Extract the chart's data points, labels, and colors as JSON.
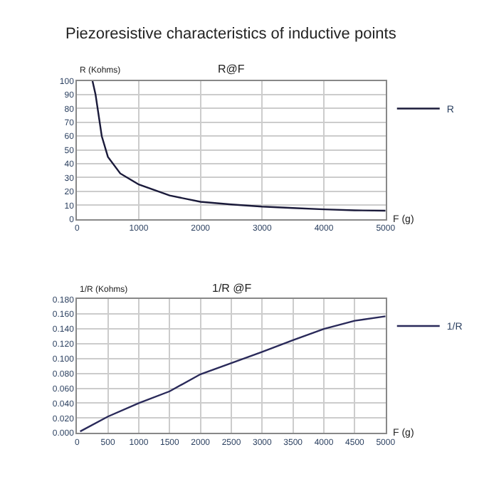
{
  "chart_data": [
    {
      "type": "line",
      "title": "Piezoresistive characteristics of inductive points",
      "subtitle": "R@F",
      "xlabel": "F (g)",
      "ylabel": "R (Kohms)",
      "x": [
        250,
        300,
        400,
        500,
        700,
        1000,
        1500,
        2000,
        2500,
        3000,
        3500,
        4000,
        4500,
        5000
      ],
      "series": [
        {
          "name": "R",
          "color": "#1a1a3a",
          "values": [
            100,
            90,
            60,
            45,
            33,
            25,
            17,
            12.5,
            10.5,
            9,
            8,
            7,
            6.3,
            6
          ]
        }
      ],
      "xlim": [
        0,
        5000
      ],
      "xticks": [
        0,
        1000,
        2000,
        3000,
        4000,
        5000
      ],
      "ylim": [
        0,
        100
      ],
      "yticks": [
        0,
        10,
        20,
        30,
        40,
        50,
        60,
        70,
        80,
        90,
        100
      ],
      "grid": true,
      "legend": "right"
    },
    {
      "type": "line",
      "title": "1/R @F",
      "xlabel": "F (g)",
      "ylabel": "1/R (Kohms)",
      "x": [
        50,
        500,
        1000,
        1500,
        2000,
        2500,
        3000,
        3500,
        4000,
        4500,
        5000
      ],
      "series": [
        {
          "name": "1/R",
          "color": "#2a2a5a",
          "values": [
            0.002,
            0.022,
            0.04,
            0.056,
            0.079,
            0.094,
            0.109,
            0.125,
            0.14,
            0.151,
            0.157
          ]
        }
      ],
      "xlim": [
        0,
        5000
      ],
      "xticks": [
        0,
        500,
        1000,
        1500,
        2000,
        2500,
        3000,
        3500,
        4000,
        4500,
        5000
      ],
      "ylim": [
        0,
        0.18
      ],
      "yticks": [
        {
          "value": 0,
          "label": "0.000"
        },
        {
          "value": 0.02,
          "label": "0.020"
        },
        {
          "value": 0.04,
          "label": "0.040"
        },
        {
          "value": 0.06,
          "label": "0.060"
        },
        {
          "value": 0.08,
          "label": "0.080"
        },
        {
          "value": 0.1,
          "label": "0.100"
        },
        {
          "value": 0.12,
          "label": "0.120"
        },
        {
          "value": 0.14,
          "label": "0.140"
        },
        {
          "value": 0.16,
          "label": "0.160"
        },
        {
          "value": 0.18,
          "label": "0.180"
        }
      ],
      "grid": true,
      "legend": "right"
    }
  ]
}
